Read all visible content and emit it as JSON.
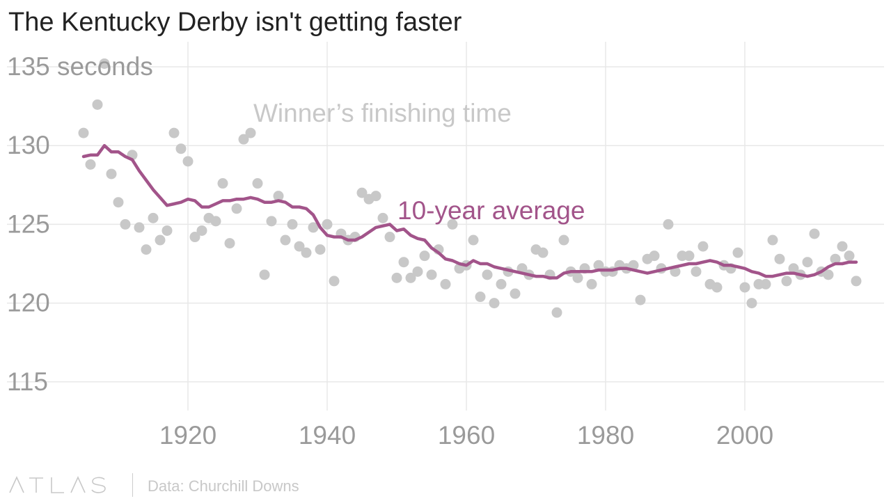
{
  "title": "The Kentucky Derby isn't getting faster",
  "footer": {
    "logo": "ATLAS",
    "source": "Data: Churchill Downs"
  },
  "chart_data": {
    "type": "scatter",
    "ylabel_unit": "seconds",
    "ylim": [
      113.5,
      137
    ],
    "xlim": [
      1902,
      2022
    ],
    "yticks": [
      115,
      120,
      125,
      130,
      135
    ],
    "ytick_labels": [
      "115",
      "120",
      "125",
      "130",
      "135 seconds"
    ],
    "xticks": [
      1920,
      1940,
      1960,
      1980,
      2000
    ],
    "xtick_labels": [
      "1920",
      "1940",
      "1960",
      "1980",
      "2000"
    ],
    "grid": true,
    "colors": {
      "points": "#c8c8c8",
      "average_line": "#a2548a",
      "grid": "#e8e8e8",
      "tick_text": "#9a9a9a",
      "points_label": "#c8c8c8"
    },
    "series": [
      {
        "name": "Winner’s finishing time",
        "type": "scatter",
        "x": [
          1905,
          1906,
          1907,
          1908,
          1909,
          1910,
          1911,
          1912,
          1913,
          1914,
          1915,
          1916,
          1917,
          1918,
          1919,
          1920,
          1921,
          1922,
          1923,
          1924,
          1925,
          1926,
          1927,
          1928,
          1929,
          1930,
          1931,
          1932,
          1933,
          1934,
          1935,
          1936,
          1937,
          1938,
          1939,
          1940,
          1941,
          1942,
          1943,
          1944,
          1945,
          1946,
          1947,
          1948,
          1949,
          1950,
          1951,
          1952,
          1953,
          1954,
          1955,
          1956,
          1957,
          1958,
          1959,
          1960,
          1961,
          1962,
          1963,
          1964,
          1965,
          1966,
          1967,
          1968,
          1969,
          1970,
          1971,
          1972,
          1973,
          1974,
          1975,
          1976,
          1977,
          1978,
          1979,
          1980,
          1981,
          1982,
          1983,
          1984,
          1985,
          1986,
          1987,
          1988,
          1989,
          1990,
          1991,
          1992,
          1993,
          1994,
          1995,
          1996,
          1997,
          1998,
          1999,
          2000,
          2001,
          2002,
          2003,
          2004,
          2005,
          2006,
          2007,
          2008,
          2009,
          2010,
          2011,
          2012,
          2013,
          2014,
          2015,
          2016
        ],
        "y": [
          130.8,
          128.8,
          132.6,
          135.2,
          128.2,
          126.4,
          125.0,
          129.4,
          124.8,
          123.4,
          125.4,
          124.0,
          124.6,
          130.8,
          129.8,
          129.0,
          124.2,
          124.6,
          125.4,
          125.2,
          127.6,
          123.8,
          126.0,
          130.4,
          130.8,
          127.6,
          121.8,
          125.2,
          126.8,
          124.0,
          125.0,
          123.6,
          123.2,
          124.8,
          123.4,
          125.0,
          121.4,
          124.4,
          124.0,
          124.2,
          127.0,
          126.6,
          126.8,
          125.4,
          124.2,
          121.6,
          122.6,
          121.6,
          122.0,
          123.0,
          121.8,
          123.4,
          121.2,
          125.0,
          122.2,
          122.4,
          124.0,
          120.4,
          121.8,
          120.0,
          121.2,
          122.0,
          120.6,
          122.2,
          121.8,
          123.4,
          123.2,
          121.8,
          119.4,
          124.0,
          122.0,
          121.6,
          122.2,
          121.2,
          122.4,
          122.0,
          122.0,
          122.4,
          122.2,
          122.4,
          120.2,
          122.8,
          123.0,
          122.2,
          125.0,
          122.0,
          123.0,
          123.0,
          122.0,
          123.6,
          121.2,
          121.0,
          122.4,
          122.2,
          123.2,
          121.0,
          120.0,
          121.2,
          121.2,
          124.0,
          122.8,
          121.4,
          122.2,
          121.8,
          122.6,
          124.4,
          122.0,
          121.8,
          122.8,
          123.6,
          123.0,
          121.4
        ]
      },
      {
        "name": "10-year average",
        "type": "line",
        "x": [
          1905,
          1906,
          1907,
          1908,
          1909,
          1910,
          1911,
          1912,
          1913,
          1914,
          1915,
          1916,
          1917,
          1918,
          1919,
          1920,
          1921,
          1922,
          1923,
          1924,
          1925,
          1926,
          1927,
          1928,
          1929,
          1930,
          1931,
          1932,
          1933,
          1934,
          1935,
          1936,
          1937,
          1938,
          1939,
          1940,
          1941,
          1942,
          1943,
          1944,
          1945,
          1946,
          1947,
          1948,
          1949,
          1950,
          1951,
          1952,
          1953,
          1954,
          1955,
          1956,
          1957,
          1958,
          1959,
          1960,
          1961,
          1962,
          1963,
          1964,
          1965,
          1966,
          1967,
          1968,
          1969,
          1970,
          1971,
          1972,
          1973,
          1974,
          1975,
          1976,
          1977,
          1978,
          1979,
          1980,
          1981,
          1982,
          1983,
          1984,
          1985,
          1986,
          1987,
          1988,
          1989,
          1990,
          1991,
          1992,
          1993,
          1994,
          1995,
          1996,
          1997,
          1998,
          1999,
          2000,
          2001,
          2002,
          2003,
          2004,
          2005,
          2006,
          2007,
          2008,
          2009,
          2010,
          2011,
          2012,
          2013,
          2014,
          2015,
          2016
        ],
        "y": [
          129.3,
          129.4,
          129.4,
          130.0,
          129.6,
          129.6,
          129.3,
          129.1,
          128.4,
          127.8,
          127.2,
          126.7,
          126.2,
          126.3,
          126.4,
          126.6,
          126.5,
          126.1,
          126.1,
          126.3,
          126.5,
          126.5,
          126.6,
          126.6,
          126.7,
          126.6,
          126.4,
          126.4,
          126.5,
          126.4,
          126.1,
          126.1,
          126.0,
          125.6,
          124.8,
          124.3,
          124.2,
          124.2,
          124.0,
          124.0,
          124.2,
          124.5,
          124.8,
          124.9,
          125.0,
          124.6,
          124.7,
          124.3,
          124.1,
          124.0,
          123.5,
          123.2,
          122.8,
          122.7,
          122.5,
          122.4,
          122.7,
          122.5,
          122.5,
          122.3,
          122.2,
          122.1,
          122.0,
          121.9,
          121.8,
          121.7,
          121.7,
          121.6,
          121.6,
          121.9,
          122.0,
          122.0,
          122.0,
          122.0,
          122.1,
          122.1,
          122.1,
          122.2,
          122.2,
          122.1,
          122.0,
          121.9,
          122.0,
          122.1,
          122.2,
          122.3,
          122.4,
          122.5,
          122.5,
          122.6,
          122.7,
          122.6,
          122.4,
          122.4,
          122.3,
          122.2,
          122.0,
          121.9,
          121.7,
          121.7,
          121.8,
          121.9,
          121.9,
          121.8,
          121.7,
          121.8,
          122.0,
          122.3,
          122.5,
          122.5,
          122.6,
          122.6
        ]
      }
    ],
    "annotations": [
      {
        "text": "Winner’s finishing time",
        "series": 0
      },
      {
        "text": "10-year average",
        "series": 1
      }
    ]
  }
}
